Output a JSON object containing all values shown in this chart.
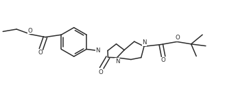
{
  "bg_color": "#ffffff",
  "line_color": "#2a2a2a",
  "line_width": 1.1,
  "figsize": [
    3.63,
    1.34
  ],
  "dpi": 100,
  "xlim": [
    0.0,
    10.5
  ],
  "ylim": [
    1.2,
    4.8
  ]
}
